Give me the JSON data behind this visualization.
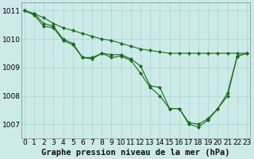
{
  "title": "Graphe pression niveau de la mer (hPa)",
  "background_color": "#cceae7",
  "grid_color": "#aad4d0",
  "line_color": "#1a6b1a",
  "marker_color": "#1a6b1a",
  "xlim": [
    -0.3,
    23.3
  ],
  "ylim": [
    1006.5,
    1011.3
  ],
  "yticks": [
    1007,
    1008,
    1009,
    1010,
    1011
  ],
  "xticks": [
    0,
    1,
    2,
    3,
    4,
    5,
    6,
    7,
    8,
    9,
    10,
    11,
    12,
    13,
    14,
    15,
    16,
    17,
    18,
    19,
    20,
    21,
    22,
    23
  ],
  "series": [
    {
      "x": [
        0,
        1,
        2,
        3,
        4,
        5,
        6,
        7,
        8,
        9,
        10,
        11,
        12,
        13,
        14,
        15,
        16,
        17,
        18,
        19,
        20,
        21,
        22,
        23
      ],
      "y": [
        1011.0,
        1010.9,
        1010.75,
        1010.55,
        1010.4,
        1010.3,
        1010.2,
        1010.1,
        1010.0,
        1009.95,
        1009.85,
        1009.75,
        1009.65,
        1009.6,
        1009.55,
        1009.5,
        1009.5,
        1009.5,
        1009.5,
        1009.5,
        1009.5,
        1009.5,
        1009.5,
        1009.5
      ]
    },
    {
      "x": [
        0,
        1,
        2,
        3,
        4,
        5,
        6,
        7,
        8,
        9,
        10,
        11,
        12,
        13,
        14,
        15,
        16,
        17,
        18,
        19,
        20,
        21,
        22,
        23
      ],
      "y": [
        1011.0,
        1010.9,
        1010.55,
        1010.45,
        1010.0,
        1009.85,
        1009.35,
        1009.35,
        1009.5,
        1009.45,
        1009.45,
        1009.3,
        1009.05,
        1008.35,
        1008.3,
        1007.55,
        1007.55,
        1007.05,
        1007.0,
        1007.2,
        1007.55,
        1008.1,
        1009.4,
        1009.5
      ]
    },
    {
      "x": [
        0,
        1,
        2,
        3,
        4,
        5,
        6,
        7,
        8,
        9,
        10,
        11,
        12,
        13,
        14,
        15,
        16,
        17,
        18,
        19,
        20,
        21,
        22,
        23
      ],
      "y": [
        1011.0,
        1010.85,
        1010.45,
        1010.4,
        1009.95,
        1009.8,
        1009.35,
        1009.3,
        1009.5,
        1009.35,
        1009.4,
        1009.25,
        1008.8,
        1008.3,
        1008.0,
        1007.55,
        1007.55,
        1007.0,
        1006.9,
        1007.15,
        1007.55,
        1008.0,
        1009.4,
        1009.5
      ]
    }
  ],
  "xlabel_fontsize": 7.5,
  "tick_fontsize": 6.5,
  "figsize": [
    3.2,
    2.0
  ],
  "dpi": 100
}
